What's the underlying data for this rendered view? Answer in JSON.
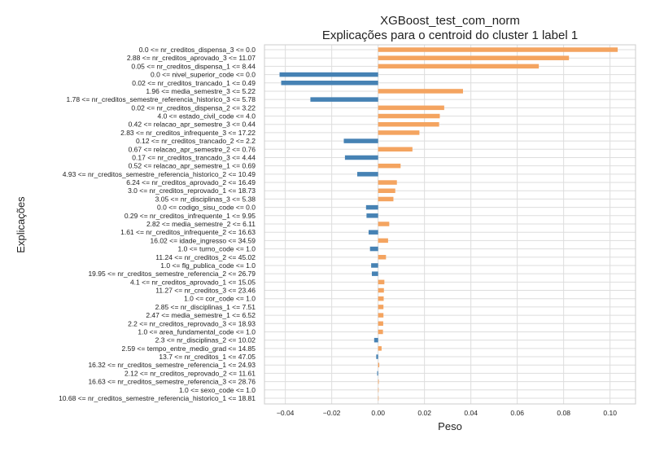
{
  "chart_data": {
    "type": "bar",
    "orientation": "horizontal",
    "title": "XGBoost_test_com_norm",
    "subtitle": "Explicações para o centroid do cluster 1 label 1",
    "xlabel": "Peso",
    "ylabel": "Explicações",
    "xlim": [
      -0.049,
      0.111
    ],
    "xticks": [
      -0.04,
      -0.02,
      0.0,
      0.02,
      0.04,
      0.06,
      0.08,
      0.1
    ],
    "xtick_labels": [
      "−0.04",
      "−0.02",
      "0.00",
      "0.02",
      "0.04",
      "0.06",
      "0.08",
      "0.10"
    ],
    "grid": true,
    "colors": {
      "positive": "#f4a460",
      "negative": "#4682b4"
    },
    "categories": [
      "0.0 <= nr_creditos_dispensa_3 <= 0.0",
      "2.88 <= nr_creditos_aprovado_3 <= 11.07",
      "0.05 <= nr_creditos_dispensa_1 <= 8.44",
      "0.0 <= nivel_superior_code <= 0.0",
      "0.02 <= nr_creditos_trancado_1 <= 0.49",
      "1.96 <= media_semestre_3 <= 5.22",
      "1.78 <= nr_creditos_semestre_referencia_historico_3 <= 5.78",
      "0.02 <= nr_creditos_dispensa_2 <= 3.22",
      "4.0 <= estado_civil_code <= 4.0",
      "0.42 <= relacao_apr_semestre_3 <= 0.44",
      "2.83 <= nr_creditos_infrequente_3 <= 17.22",
      "0.12 <= nr_creditos_trancado_2 <= 2.2",
      "0.67 <= relacao_apr_semestre_2 <= 0.76",
      "0.17 <= nr_creditos_trancado_3 <= 4.44",
      "0.52 <= relacao_apr_semestre_1 <= 0.69",
      "4.93 <= nr_creditos_semestre_referencia_historico_2 <= 10.49",
      "6.24 <= nr_creditos_aprovado_2 <= 16.49",
      "3.0 <= nr_creditos_reprovado_1 <= 18.73",
      "3.05 <= nr_disciplinas_3 <= 5.38",
      "0.0 <= codigo_sisu_code <= 0.0",
      "0.29 <= nr_creditos_infrequente_1 <= 9.95",
      "2.82 <= media_semestre_2 <= 6.11",
      "1.61 <= nr_creditos_infrequente_2 <= 16.63",
      "16.02 <= idade_ingresso <= 34.59",
      "1.0 <= turno_code <= 1.0",
      "11.24 <= nr_creditos_2 <= 45.02",
      "1.0 <= flg_publica_code <= 1.0",
      "19.95 <= nr_creditos_semestre_referencia_2 <= 26.79",
      "4.1 <= nr_creditos_aprovado_1 <= 15.05",
      "11.27 <= nr_creditos_3 <= 23.46",
      "1.0 <= cor_code <= 1.0",
      "2.85 <= nr_disciplinas_1 <= 7.51",
      "2.47 <= media_semestre_1 <= 6.52",
      "2.2 <= nr_creditos_reprovado_3 <= 18.93",
      "1.0 <= area_fundamental_code <= 1.0",
      "2.3 <= nr_disciplinas_2 <= 10.02",
      "2.59 <= tempo_entre_medio_grad <= 14.85",
      "13.7 <= nr_creditos_1 <= 47.05",
      "16.32 <= nr_creditos_semestre_referencia_1 <= 24.93",
      "2.12 <= nr_creditos_reprovado_2 <= 11.61",
      "16.63 <= nr_creditos_semestre_referencia_3 <= 28.76",
      "1.0 <= sexo_code <= 1.0",
      "10.68 <= nr_creditos_semestre_referencia_historico_1 <= 18.81"
    ],
    "values": [
      0.1033,
      0.0823,
      0.0693,
      -0.0425,
      -0.0418,
      0.0366,
      -0.0292,
      0.0285,
      0.0266,
      0.0263,
      0.0178,
      -0.0148,
      0.0148,
      -0.0143,
      0.0097,
      -0.009,
      0.0081,
      0.0074,
      0.0066,
      -0.0052,
      -0.005,
      0.0048,
      -0.0041,
      0.0043,
      -0.0035,
      0.0034,
      -0.003,
      -0.0027,
      0.0027,
      0.0025,
      0.0024,
      0.0023,
      0.0023,
      0.0022,
      0.0021,
      -0.0017,
      0.0015,
      -0.0008,
      0.0005,
      -0.0004,
      0.0003,
      0.0001,
      0.0001
    ]
  }
}
